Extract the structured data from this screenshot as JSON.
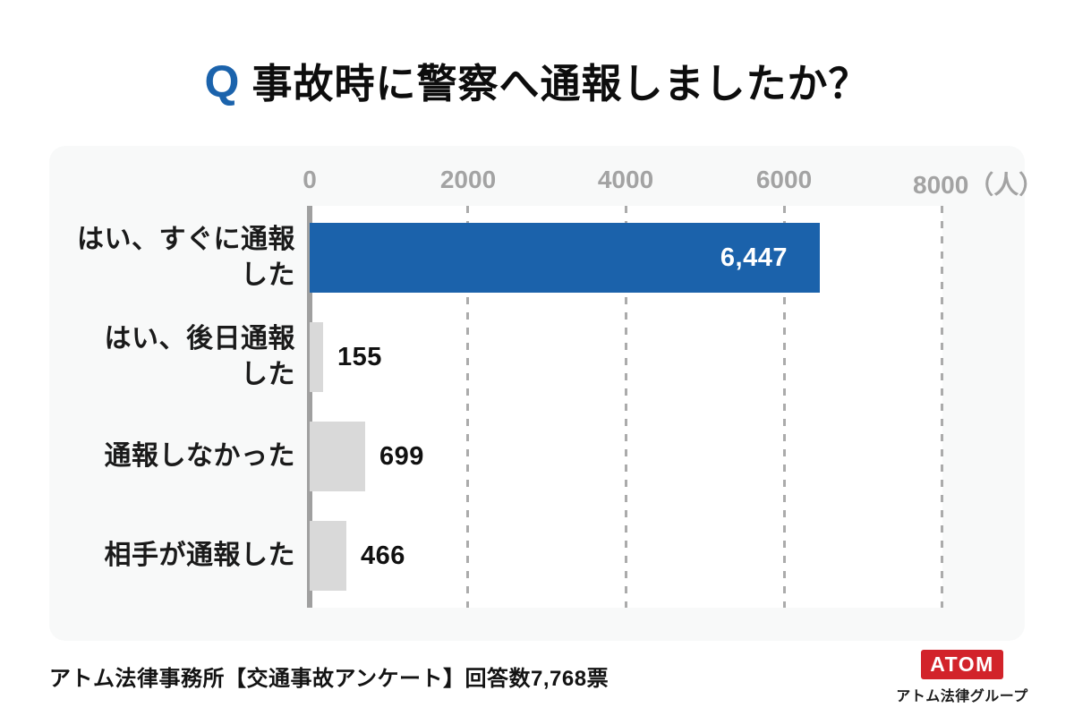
{
  "title": {
    "q_mark": "Q",
    "text": "事故時に警察へ通報しましたか？"
  },
  "chart_data": {
    "type": "bar",
    "orientation": "horizontal",
    "title": "事故時に警察へ通報しましたか？",
    "categories": [
      "はい、すぐに通報した",
      "はい、後日通報した",
      "通報しなかった",
      "相手が通報した"
    ],
    "values": [
      6447,
      155,
      699,
      466
    ],
    "value_labels": [
      "6,447",
      "155",
      "699",
      "466"
    ],
    "x_ticks": [
      0,
      2000,
      4000,
      6000,
      8000
    ],
    "xlim": [
      0,
      8000
    ],
    "x_unit": "（人）",
    "bar_colors": [
      "#1b62ab",
      "#d9d9d9",
      "#d9d9d9",
      "#d9d9d9"
    ],
    "grid": "dashed-vertical",
    "legend": "none"
  },
  "axis": {
    "ticks": [
      "0",
      "2000",
      "4000",
      "6000",
      "8000"
    ],
    "unit": "（人）"
  },
  "categories_display": [
    "はい、すぐに通報\nした",
    "はい、後日通報\nした",
    "通報しなかった",
    "相手が通報した"
  ],
  "footer": {
    "source": "アトム法律事務所【交通事故アンケート】回答数7,768票",
    "logo_text": "ATOM",
    "logo_subtext": "アトム法律グループ"
  },
  "colors": {
    "accent_blue": "#1b62ab",
    "bar_gray": "#d9d9d9",
    "logo_red": "#d2232a",
    "panel_bg": "#f8f9f9",
    "axis_gray": "#a0a0a0",
    "tick_text": "#a3a3a3"
  }
}
